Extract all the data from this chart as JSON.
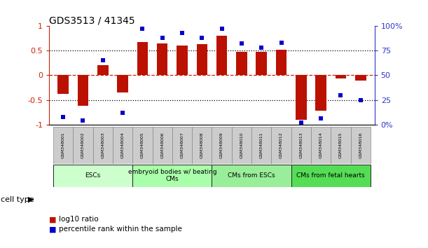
{
  "title": "GDS3513 / 41345",
  "samples": [
    "GSM348001",
    "GSM348002",
    "GSM348003",
    "GSM348004",
    "GSM348005",
    "GSM348006",
    "GSM348007",
    "GSM348008",
    "GSM348009",
    "GSM348010",
    "GSM348011",
    "GSM348012",
    "GSM348013",
    "GSM348014",
    "GSM348015",
    "GSM348016"
  ],
  "log10_ratio": [
    -0.38,
    -0.62,
    0.2,
    -0.35,
    0.67,
    0.65,
    0.6,
    0.63,
    0.8,
    0.48,
    0.48,
    0.52,
    -0.9,
    -0.72,
    -0.07,
    -0.1
  ],
  "percentile_rank": [
    8,
    4,
    65,
    12,
    97,
    88,
    93,
    88,
    97,
    82,
    78,
    83,
    2,
    6,
    30,
    25
  ],
  "cell_types": [
    {
      "label": "ESCs",
      "start": 0,
      "end": 4,
      "color": "#ccffcc"
    },
    {
      "label": "embryoid bodies w/ beating\nCMs",
      "start": 4,
      "end": 8,
      "color": "#aaffaa"
    },
    {
      "label": "CMs from ESCs",
      "start": 8,
      "end": 12,
      "color": "#99ee99"
    },
    {
      "label": "CMs from fetal hearts",
      "start": 12,
      "end": 16,
      "color": "#55dd55"
    }
  ],
  "bar_color": "#bb1100",
  "dot_color": "#0000cc",
  "left_axis_color": "#cc2200",
  "right_axis_color": "#3333cc",
  "ylim_left": [
    -1,
    1
  ],
  "ylim_right": [
    0,
    100
  ],
  "yticks_left": [
    -1,
    -0.5,
    0,
    0.5,
    1
  ],
  "yticks_left_labels": [
    "-1",
    "-0.5",
    "0",
    "0.5",
    "1"
  ],
  "yticks_right": [
    0,
    25,
    50,
    75,
    100
  ],
  "yticks_right_labels": [
    "0%",
    "25",
    "50",
    "75",
    "100%"
  ],
  "background_color": "#ffffff",
  "cell_type_label": "cell type",
  "legend_log10": "log10 ratio",
  "legend_pct": "percentile rank within the sample",
  "sample_box_color": "#cccccc",
  "sample_box_edgecolor": "#888888"
}
